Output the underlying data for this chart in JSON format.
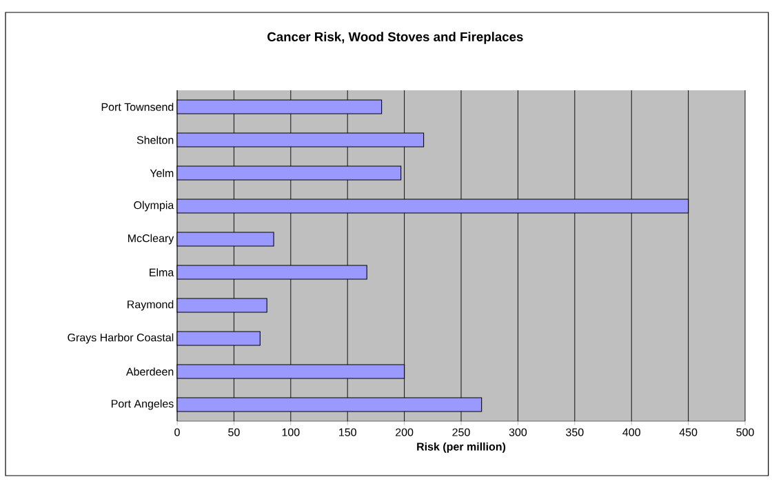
{
  "chart_data": {
    "type": "bar",
    "orientation": "horizontal",
    "title": "Cancer Risk, Wood Stoves and Fireplaces",
    "xlabel": "Risk (per million)",
    "categories": [
      "Port Townsend",
      "Shelton",
      "Yelm",
      "Olympia",
      "McCleary",
      "Elma",
      "Raymond",
      "Grays Harbor Coastal",
      "Aberdeen",
      "Port Angeles"
    ],
    "values": [
      180,
      217,
      197,
      450,
      85,
      167,
      79,
      73,
      200,
      268
    ],
    "color": "#9999ff",
    "xlim": [
      0,
      500
    ],
    "xticks": [
      0,
      50,
      100,
      150,
      200,
      250,
      300,
      350,
      400,
      450,
      500
    ],
    "grid": "x"
  }
}
